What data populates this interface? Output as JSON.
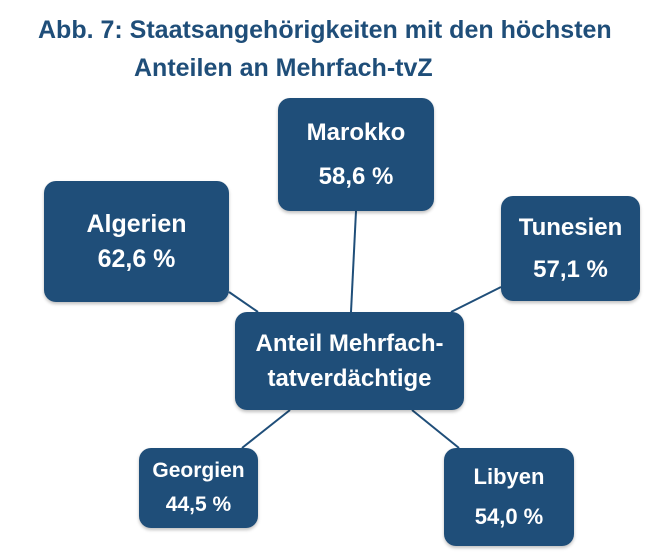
{
  "title": {
    "line1": "Abb. 7: Staatsangehörigkeiten mit den höchsten",
    "line2": "Anteilen an Mehrfach-tvZ"
  },
  "center": {
    "line1": "Anteil Mehrfach-",
    "line2": "tatverdächtige"
  },
  "nodes": {
    "marokko": {
      "name": "Marokko",
      "value": "58,6 %"
    },
    "algerien": {
      "name": "Algerien",
      "value": "62,6 %"
    },
    "tunesien": {
      "name": "Tunesien",
      "value": "57,1 %"
    },
    "georgien": {
      "name": "Georgien",
      "value": "44,5 %"
    },
    "libyen": {
      "name": "Libyen",
      "value": "54,0 %"
    }
  },
  "colors": {
    "box": "#1f4e79",
    "title": "#1f4e79",
    "connector": "#1f4e79",
    "box_text": "#ffffff"
  }
}
